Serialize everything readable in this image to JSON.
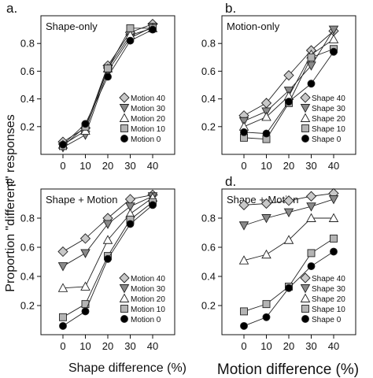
{
  "figure": {
    "ylabel": "Proportion \"different\" responses",
    "xlabel_left": "Shape difference (%)",
    "xlabel_right": "Motion difference (%)"
  },
  "chart_data": [
    {
      "type": "line",
      "panel_label": "a.",
      "title": "Shape-only",
      "x": [
        0,
        10,
        20,
        30,
        40
      ],
      "ylim": [
        0,
        1
      ],
      "yticks": [
        0.2,
        0.4,
        0.6,
        0.8
      ],
      "xticks": [
        0,
        10,
        20,
        30,
        40
      ],
      "legend_position": "bottom-right",
      "series": [
        {
          "name": "Motion 40",
          "marker": "diamond",
          "values": [
            0.09,
            0.19,
            0.64,
            0.88,
            0.94
          ]
        },
        {
          "name": "Motion 30",
          "marker": "triangle-down",
          "values": [
            0.05,
            0.14,
            0.6,
            0.84,
            0.92
          ]
        },
        {
          "name": "Motion 20",
          "marker": "triangle-up",
          "values": [
            0.07,
            0.17,
            0.62,
            0.86,
            0.91
          ]
        },
        {
          "name": "Motion 10",
          "marker": "square",
          "values": [
            0.06,
            0.2,
            0.62,
            0.91,
            0.91
          ]
        },
        {
          "name": "Motion  0",
          "marker": "circle",
          "values": [
            0.07,
            0.22,
            0.56,
            0.82,
            0.9
          ]
        }
      ]
    },
    {
      "type": "line",
      "panel_label": "b.",
      "title": "Motion-only",
      "x": [
        0,
        10,
        20,
        30,
        40
      ],
      "ylim": [
        0,
        1
      ],
      "yticks": [
        0.2,
        0.4,
        0.6,
        0.8
      ],
      "xticks": [
        0,
        10,
        20,
        30,
        40
      ],
      "legend_position": "bottom-right",
      "series": [
        {
          "name": "Shape 40",
          "marker": "diamond",
          "values": [
            0.28,
            0.37,
            0.57,
            0.75,
            0.89
          ]
        },
        {
          "name": "Shape 30",
          "marker": "triangle-down",
          "values": [
            0.24,
            0.31,
            0.46,
            0.64,
            0.9
          ]
        },
        {
          "name": "Shape 20",
          "marker": "triangle-up",
          "values": [
            0.2,
            0.27,
            0.42,
            0.72,
            0.83
          ]
        },
        {
          "name": "Shape 10",
          "marker": "square",
          "values": [
            0.12,
            0.11,
            0.37,
            0.7,
            0.76
          ]
        },
        {
          "name": "Shape   0",
          "marker": "circle",
          "values": [
            0.16,
            0.15,
            0.38,
            0.51,
            0.74
          ]
        }
      ]
    },
    {
      "type": "line",
      "panel_label": "c.",
      "title": "Shape + Motion",
      "x": [
        0,
        10,
        20,
        30,
        40
      ],
      "ylim": [
        0,
        1
      ],
      "yticks": [
        0.2,
        0.4,
        0.6,
        0.8
      ],
      "xticks": [
        0,
        10,
        20,
        30,
        40
      ],
      "legend_position": "bottom-right",
      "series": [
        {
          "name": "Motion 40",
          "marker": "diamond",
          "values": [
            0.57,
            0.66,
            0.8,
            0.93,
            0.96
          ]
        },
        {
          "name": "Motion 30",
          "marker": "triangle-down",
          "values": [
            0.47,
            0.56,
            0.76,
            0.88,
            0.95
          ]
        },
        {
          "name": "Motion 20",
          "marker": "triangle-up",
          "values": [
            0.32,
            0.33,
            0.65,
            0.83,
            0.94
          ]
        },
        {
          "name": "Motion 10",
          "marker": "square",
          "values": [
            0.12,
            0.21,
            0.54,
            0.79,
            0.91
          ]
        },
        {
          "name": "Motion   0",
          "marker": "circle",
          "values": [
            0.06,
            0.16,
            0.52,
            0.76,
            0.89
          ]
        }
      ]
    },
    {
      "type": "line",
      "panel_label": "d.",
      "title": "Shape + Motion",
      "x": [
        0,
        10,
        20,
        30,
        40
      ],
      "ylim": [
        0,
        1
      ],
      "yticks": [
        0.2,
        0.4,
        0.6,
        0.8
      ],
      "xticks": [
        0,
        10,
        20,
        30,
        40
      ],
      "legend_position": "bottom-right",
      "series": [
        {
          "name": "Shape 40",
          "marker": "diamond",
          "values": [
            0.89,
            0.9,
            0.92,
            0.95,
            0.97
          ]
        },
        {
          "name": "Shape 30",
          "marker": "triangle-down",
          "values": [
            0.75,
            0.8,
            0.84,
            0.88,
            0.93
          ]
        },
        {
          "name": "Shape 20",
          "marker": "triangle-up",
          "values": [
            0.51,
            0.55,
            0.65,
            0.8,
            0.8
          ]
        },
        {
          "name": "Shape 10",
          "marker": "square",
          "values": [
            0.16,
            0.21,
            0.33,
            0.56,
            0.66
          ]
        },
        {
          "name": "Shape   0",
          "marker": "circle",
          "values": [
            0.06,
            0.12,
            0.32,
            0.47,
            0.57
          ]
        }
      ]
    }
  ],
  "marker_styles": {
    "diamond": {
      "fill": "#c8c8c8"
    },
    "triangle-down": {
      "fill": "#8a8a8a"
    },
    "triangle-up": {
      "fill": "#ffffff"
    },
    "square": {
      "fill": "#b4b4b4"
    },
    "circle": {
      "fill": "#000000"
    }
  }
}
